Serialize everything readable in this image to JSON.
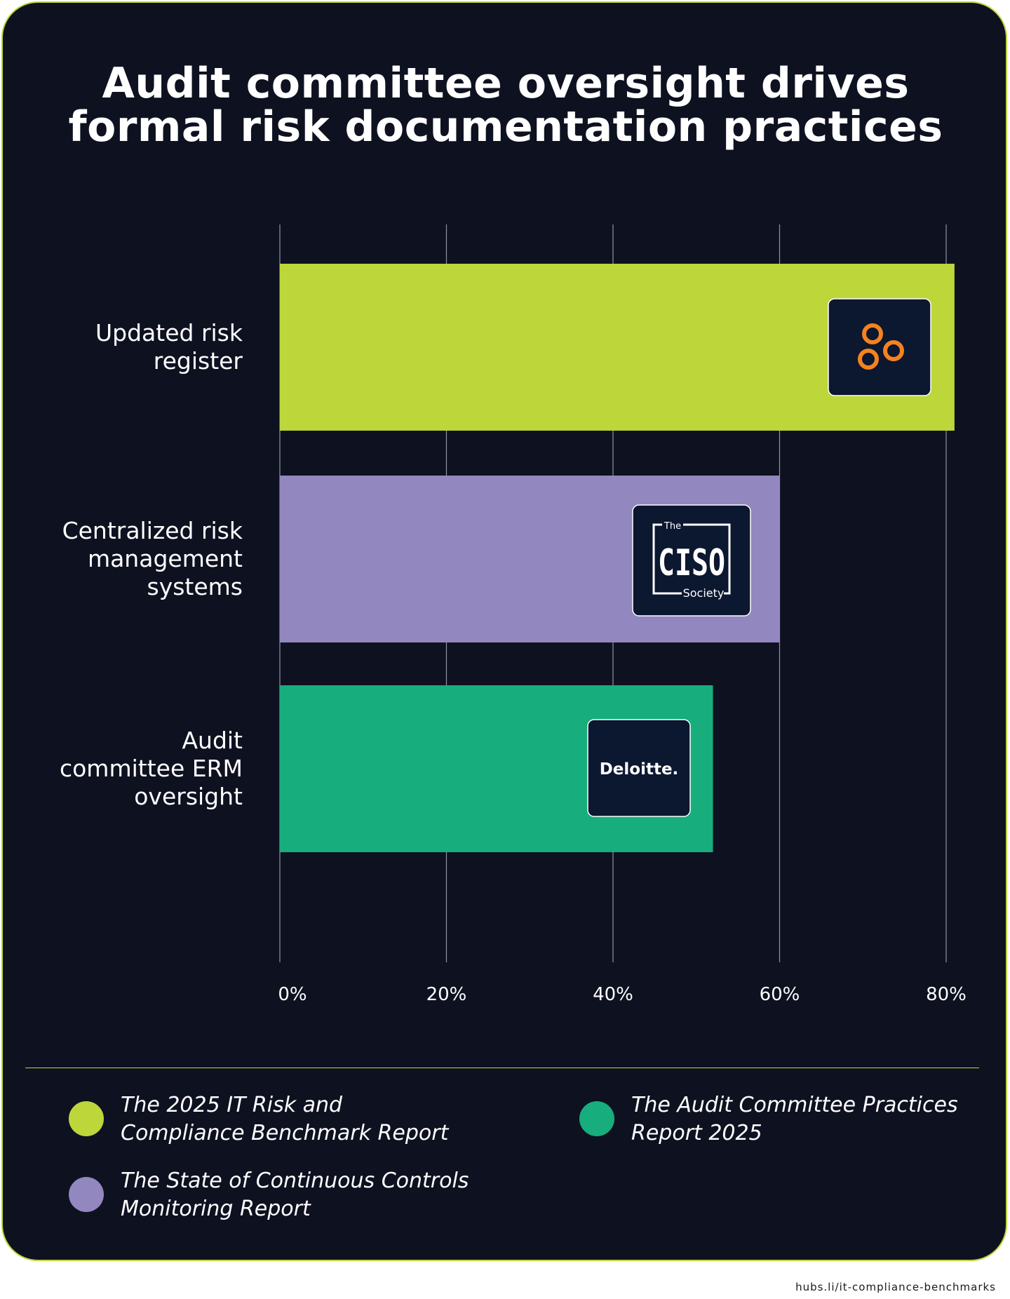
{
  "title_lines": [
    "Audit committee oversight drives",
    "formal risk documentation practices"
  ],
  "chart_data": {
    "type": "bar",
    "orientation": "horizontal",
    "categories": [
      [
        "Updated risk",
        "register"
      ],
      [
        "Centralized risk",
        "management",
        "systems"
      ],
      [
        "Audit",
        "committee ERM",
        "oversight"
      ]
    ],
    "values": [
      81,
      60,
      52
    ],
    "bar_colors": [
      "#bdd73a",
      "#9287be",
      "#17ad7d"
    ],
    "bar_logos": [
      "vanta-logo",
      "ciso-society-logo",
      "deloitte-logo"
    ],
    "xlim": [
      0,
      80
    ],
    "x_ticks": [
      0,
      20,
      40,
      60,
      80
    ],
    "x_tick_labels": [
      "0%",
      "20%",
      "40%",
      "60%",
      "80%"
    ],
    "grid": true,
    "legend_position": "bottom"
  },
  "logos": {
    "ciso_top": "The",
    "ciso_main": "CISO",
    "ciso_bottom": "Society",
    "deloitte": "Deloitte."
  },
  "legend": [
    {
      "color": "#bdd73a",
      "lines": [
        "The 2025 IT Risk and",
        "Compliance Benchmark Report"
      ]
    },
    {
      "color": "#9287be",
      "lines": [
        "The State of Continuous Controls",
        "Monitoring Report"
      ]
    },
    {
      "color": "#17ad7d",
      "lines": [
        "The Audit Committee Practices",
        "Report 2025"
      ]
    }
  ],
  "colors": {
    "background": "#0e1120",
    "accent": "#bdd73a",
    "logo_bg": "#0c1730",
    "vanta_orange": "#f5821f"
  },
  "footer_url": "hubs.li/it-compliance-benchmarks"
}
